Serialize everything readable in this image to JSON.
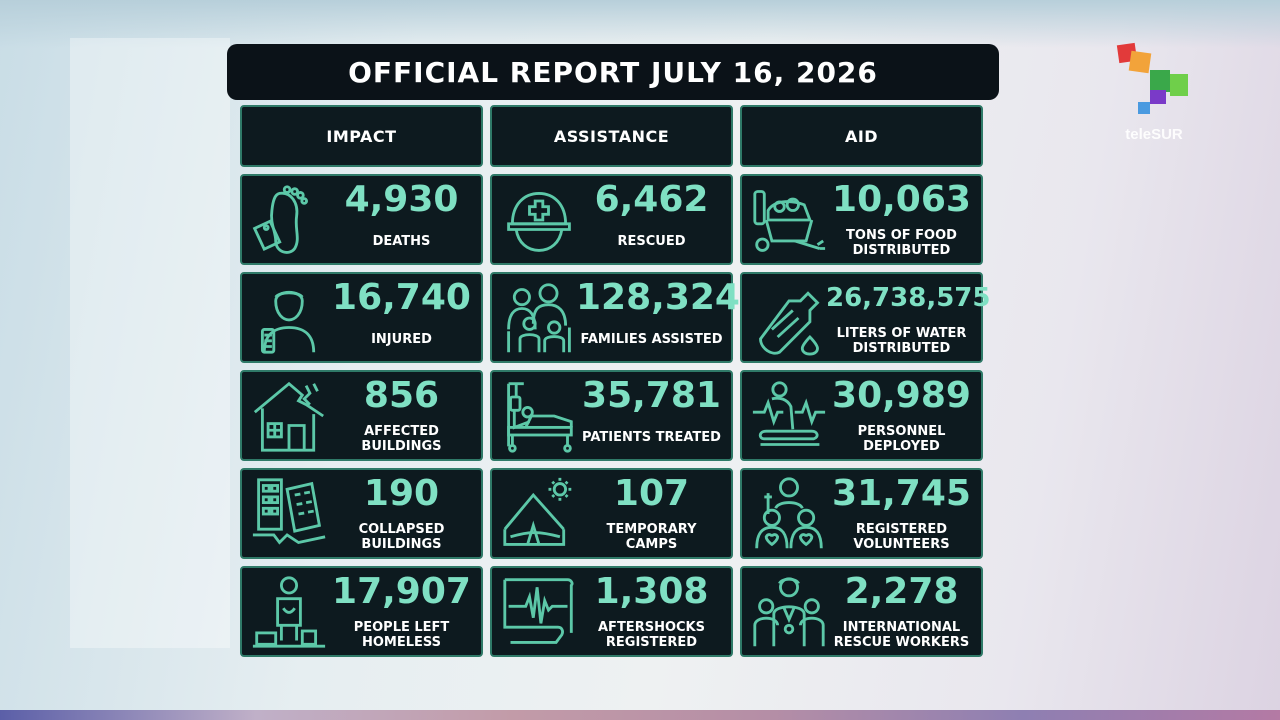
{
  "title": "OFFICIAL REPORT JULY 16, 2026",
  "logo": {
    "brand_text": "teleSUR"
  },
  "columns": [
    {
      "header": "IMPACT"
    },
    {
      "header": "ASSISTANCE"
    },
    {
      "header": "AID"
    }
  ],
  "stats": {
    "deaths": {
      "value": "4,930",
      "label": "DEATHS",
      "icon": "footprint-tag-icon"
    },
    "injured": {
      "value": "16,740",
      "label": "INJURED",
      "icon": "injured-person-icon"
    },
    "affected_buildings": {
      "value": "856",
      "label": "AFFECTED\nBUILDINGS",
      "icon": "damaged-house-icon"
    },
    "collapsed_buildings": {
      "value": "190",
      "label": "COLLAPSED\nBUILDINGS",
      "icon": "collapsed-building-icon"
    },
    "homeless": {
      "value": "17,907",
      "label": "PEOPLE LEFT\nHOMELESS",
      "icon": "homeless-person-icon"
    },
    "rescued": {
      "value": "6,462",
      "label": "RESCUED",
      "icon": "rescue-helmet-icon"
    },
    "families": {
      "value": "128,324",
      "label": "FAMILIES ASSISTED",
      "icon": "family-icon"
    },
    "patients": {
      "value": "35,781",
      "label": "PATIENTS TREATED",
      "icon": "hospital-bed-icon"
    },
    "camps": {
      "value": "107",
      "label": "TEMPORARY\nCAMPS",
      "icon": "tent-icon"
    },
    "aftershocks": {
      "value": "1,308",
      "label": "AFTERSHOCKS\nREGISTERED",
      "icon": "seismograph-icon"
    },
    "food": {
      "value": "10,063",
      "label": "TONS OF FOOD\nDISTRIBUTED",
      "icon": "food-basket-icon"
    },
    "water": {
      "value": "26,738,575",
      "label": "LITERS OF WATER\nDISTRIBUTED",
      "icon": "water-bottle-icon"
    },
    "personnel": {
      "value": "30,989",
      "label": "PERSONNEL\nDEPLOYED",
      "icon": "medic-heartbeat-icon"
    },
    "volunteers": {
      "value": "31,745",
      "label": "REGISTERED\nVOLUNTEERS",
      "icon": "volunteers-icon"
    },
    "rescue_workers": {
      "value": "2,278",
      "label": "INTERNATIONAL\nRESCUE WORKERS",
      "icon": "rescue-workers-icon"
    }
  },
  "colors": {
    "panel_bg": "#0d1a1f",
    "panel_border": "#2f7a68",
    "value_color": "#7fe0c3",
    "icon_stroke": "#5cc8a8"
  }
}
